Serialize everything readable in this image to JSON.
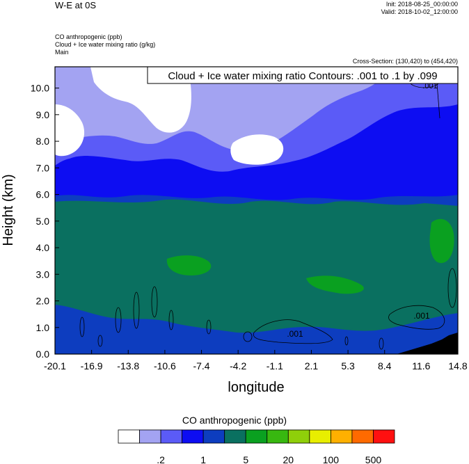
{
  "header": {
    "title": "W-E at 0S",
    "init": "Init: 2018-08-25_00:00:00",
    "valid": "Valid: 2018-10-02_12:00:00",
    "field1": "CO anthropogenic   (ppb)",
    "field2": "Cloud + Ice water mixing ratio   (g/kg)",
    "field3": "Main",
    "cross_section": "Cross-Section: (130,420) to (454,420)"
  },
  "chart_data": {
    "type": "heatmap",
    "contour_label": "Cloud + Ice water mixing ratio Contours: .001 to .1 by .099",
    "contour_values": [
      ".001",
      ".001",
      ".001"
    ],
    "xlabel": "longitude",
    "ylabel": "Height (km)",
    "xticks": [
      "-20.1",
      "-16.9",
      "-13.8",
      "-10.6",
      "-7.4",
      "-4.2",
      "-1.1",
      "2.1",
      "5.3",
      "8.4",
      "11.6",
      "14.8"
    ],
    "yticks": [
      "0.0",
      "1.0",
      "2.0",
      "3.0",
      "4.0",
      "5.0",
      "6.0",
      "7.0",
      "8.0",
      "9.0",
      "10.0"
    ],
    "ylim": [
      0,
      10.8
    ],
    "xlim": [
      -20.1,
      14.8
    ],
    "legend": {
      "title": "CO anthropogenic  (ppb)",
      "colors": [
        "#ffffff",
        "#a3a3f2",
        "#5b5bf7",
        "#0d0df2",
        "#0d3dbf",
        "#0a7060",
        "#0aa020",
        "#38b810",
        "#8fcf0a",
        "#e8ee00",
        "#ffb000",
        "#ff6a00",
        "#ff1010"
      ],
      "labels": [
        ".2",
        "1",
        "5",
        "20",
        "100",
        "500"
      ]
    },
    "colors": {
      "background_lower": "#0d3dbf",
      "band_green": "#0a7060",
      "upper_blue": "#0d0df2",
      "light_blue": "#5b5bf7",
      "pale_blue": "#a3a3f2",
      "green_bright": "#0aa020",
      "terrain": "#000000"
    }
  }
}
